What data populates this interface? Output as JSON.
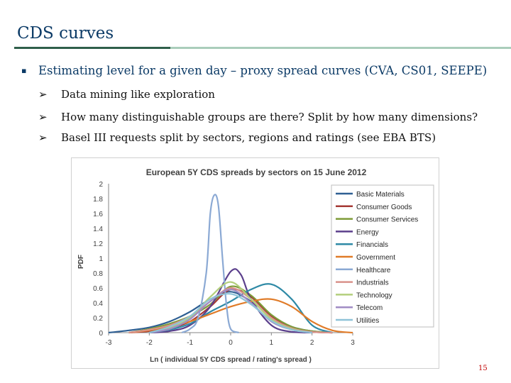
{
  "slide": {
    "title": "CDS curves",
    "bullet_marker": "▪",
    "bullet": "Estimating level for a given day – proxy spread curves (CVA, CS01, SEEPE)",
    "sub_marker": "➢",
    "sub_bullets": [
      "Data mining like exploration",
      "How many distinguishable groups are there? Split by how many dimensions?",
      "Basel III requests split by sectors, regions and ratings (see EBA BTS)"
    ],
    "page_number": "15"
  },
  "chart_data": {
    "type": "line",
    "title": "European 5Y CDS spreads by sectors on 15 June 2012",
    "xlabel": "Ln ( individual 5Y CDS spread / rating's spread )",
    "ylabel": "PDF",
    "xlim": [
      -3,
      3
    ],
    "ylim": [
      0,
      2
    ],
    "xticks": [
      -3,
      -2,
      -1,
      0,
      1,
      2,
      3
    ],
    "yticks": [
      0,
      0.2,
      0.4,
      0.6,
      0.8,
      1,
      1.2,
      1.4,
      1.6,
      1.8,
      2
    ],
    "legend_position": "right",
    "series": [
      {
        "name": "Basic Materials",
        "color": "#2e5f93",
        "x": [
          -3,
          -2.5,
          -2,
          -1.5,
          -1,
          -0.5,
          0,
          0.5,
          1,
          1.5,
          2,
          2.5
        ],
        "values": [
          0,
          0.03,
          0.07,
          0.15,
          0.28,
          0.45,
          0.55,
          0.42,
          0.22,
          0.08,
          0.02,
          0
        ]
      },
      {
        "name": "Consumer Goods",
        "color": "#a53a35",
        "x": [
          -2.5,
          -2,
          -1.5,
          -1,
          -0.5,
          0,
          0.5,
          1,
          1.5,
          2,
          2.5
        ],
        "values": [
          0,
          0.02,
          0.06,
          0.15,
          0.35,
          0.58,
          0.48,
          0.22,
          0.06,
          0.01,
          0
        ]
      },
      {
        "name": "Consumer Services",
        "color": "#7e9b38",
        "x": [
          -2.5,
          -2,
          -1.5,
          -1,
          -0.5,
          0,
          0.5,
          1,
          1.5,
          2,
          2.5
        ],
        "values": [
          0,
          0.05,
          0.12,
          0.22,
          0.38,
          0.62,
          0.5,
          0.24,
          0.08,
          0.02,
          0
        ]
      },
      {
        "name": "Energy",
        "color": "#5b3f8c",
        "x": [
          -2,
          -1.5,
          -1,
          -0.5,
          0,
          0.25,
          0.5,
          1,
          1.5,
          2
        ],
        "values": [
          0,
          0.02,
          0.1,
          0.35,
          0.82,
          0.78,
          0.45,
          0.1,
          0.01,
          0
        ]
      },
      {
        "name": "Financials",
        "color": "#2f8aa6",
        "x": [
          -2,
          -1.5,
          -1,
          -0.5,
          0,
          0.5,
          1,
          1.5,
          2,
          2.5
        ],
        "values": [
          0,
          0.04,
          0.12,
          0.28,
          0.42,
          0.58,
          0.65,
          0.45,
          0.1,
          0
        ]
      },
      {
        "name": "Government",
        "color": "#e07b28",
        "x": [
          -2.5,
          -2,
          -1.5,
          -1,
          -0.5,
          0,
          0.5,
          1,
          1.5,
          2,
          2.5,
          3
        ],
        "values": [
          0,
          0.03,
          0.08,
          0.15,
          0.25,
          0.35,
          0.42,
          0.45,
          0.35,
          0.15,
          0.03,
          0
        ]
      },
      {
        "name": "Healthcare",
        "color": "#8ba9d4",
        "x": [
          -1.2,
          -1,
          -0.8,
          -0.6,
          -0.5,
          -0.4,
          -0.3,
          -0.2,
          -0.1,
          0,
          0.2
        ],
        "values": [
          0,
          0.05,
          0.2,
          0.8,
          1.6,
          1.85,
          1.7,
          1.0,
          0.35,
          0.05,
          0
        ]
      },
      {
        "name": "Industrials",
        "color": "#d9928b",
        "x": [
          -2.5,
          -2,
          -1.5,
          -1,
          -0.5,
          0,
          0.5,
          1,
          1.5,
          2,
          2.5
        ],
        "values": [
          0,
          0.04,
          0.1,
          0.22,
          0.42,
          0.6,
          0.45,
          0.2,
          0.06,
          0.01,
          0
        ]
      },
      {
        "name": "Technology",
        "color": "#b3cf7c",
        "x": [
          -2,
          -1.5,
          -1,
          -0.5,
          0,
          0.5,
          1,
          1.5,
          2
        ],
        "values": [
          0,
          0.06,
          0.2,
          0.48,
          0.68,
          0.45,
          0.18,
          0.05,
          0
        ]
      },
      {
        "name": "Telecom",
        "color": "#a08cc4",
        "x": [
          -2,
          -1.5,
          -1,
          -0.5,
          0,
          0.5,
          1,
          1.5,
          2
        ],
        "values": [
          0,
          0.05,
          0.18,
          0.42,
          0.58,
          0.4,
          0.15,
          0.04,
          0
        ]
      },
      {
        "name": "Utilities",
        "color": "#8fc3d8",
        "x": [
          -2,
          -1.5,
          -1,
          -0.5,
          0,
          0.5,
          1,
          1.5,
          2
        ],
        "values": [
          0,
          0.08,
          0.22,
          0.45,
          0.52,
          0.38,
          0.16,
          0.04,
          0
        ]
      }
    ]
  }
}
